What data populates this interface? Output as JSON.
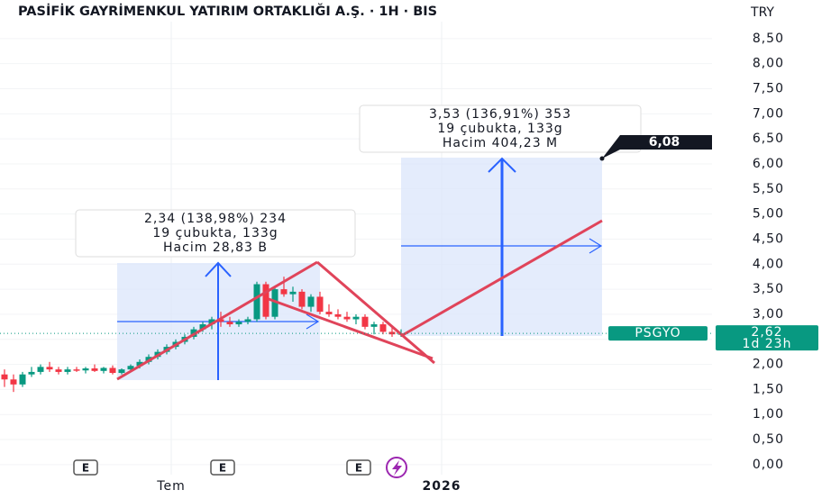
{
  "chart_data": {
    "type": "candlestick",
    "title": "PASİFİK GAYRİMENKUL YATIRIM ORTAKLIĞI A.Ş. · 1H · BIS",
    "currency": "TRY",
    "up_color": "#089981",
    "down_color": "#f23645",
    "ylim": [
      -0.2,
      9.27
    ],
    "yticks": [
      {
        "value": 0,
        "label": "0,00"
      },
      {
        "value": 0.5,
        "label": "0,50"
      },
      {
        "value": 1,
        "label": "1,00"
      },
      {
        "value": 1.5,
        "label": "1,50"
      },
      {
        "value": 2,
        "label": "2,00"
      },
      {
        "value": 2.5,
        "label": "2,50"
      },
      {
        "value": 3,
        "label": "3,00"
      },
      {
        "value": 3.5,
        "label": "3,50"
      },
      {
        "value": 4,
        "label": "4,00"
      },
      {
        "value": 4.5,
        "label": "4,50"
      },
      {
        "value": 5,
        "label": "5,00"
      },
      {
        "value": 5.5,
        "label": "5,50"
      },
      {
        "value": 6,
        "label": "6,00"
      },
      {
        "value": 6.5,
        "label": "6,50"
      },
      {
        "value": 7,
        "label": "7,00"
      },
      {
        "value": 7.5,
        "label": "7,50"
      },
      {
        "value": 8,
        "label": "8,00"
      },
      {
        "value": 8.5,
        "label": "8,50"
      }
    ],
    "xlim": [
      -0.5,
      78.5
    ],
    "xticks": [
      {
        "value": 18.5,
        "label": "Tem"
      },
      {
        "value": 48.5,
        "label": "2026"
      }
    ],
    "candles": {
      "open": [
        1.8,
        1.7,
        1.6,
        1.8,
        1.85,
        1.95,
        1.9,
        1.85,
        1.9,
        1.88,
        1.92,
        1.87,
        1.93,
        1.83,
        1.9,
        1.97,
        2.05,
        2.15,
        2.25,
        2.35,
        2.45,
        2.55,
        2.7,
        2.8,
        2.9,
        2.85,
        2.8,
        2.85,
        2.9,
        3.6,
        2.95,
        3.5,
        3.4,
        3.45,
        3.15,
        3.35,
        3.05,
        3.0,
        2.95,
        2.9,
        2.95,
        2.75,
        2.8,
        2.65,
        2.6
      ],
      "high": [
        1.9,
        1.8,
        1.85,
        1.95,
        2.0,
        2.05,
        1.95,
        1.95,
        1.95,
        1.95,
        2.0,
        1.95,
        1.98,
        1.92,
        2.0,
        2.1,
        2.2,
        2.3,
        2.4,
        2.5,
        2.6,
        2.75,
        2.85,
        2.95,
        3.05,
        2.95,
        2.9,
        2.95,
        3.65,
        3.65,
        3.55,
        3.75,
        3.55,
        3.5,
        3.4,
        3.45,
        3.2,
        3.1,
        3.05,
        3.0,
        3.0,
        2.85,
        2.85,
        2.75,
        2.7
      ],
      "low": [
        1.55,
        1.45,
        1.55,
        1.75,
        1.8,
        1.85,
        1.8,
        1.8,
        1.85,
        1.82,
        1.85,
        1.82,
        1.8,
        1.8,
        1.85,
        1.92,
        2.0,
        2.1,
        2.2,
        2.3,
        2.4,
        2.5,
        2.65,
        2.7,
        2.75,
        2.75,
        2.75,
        2.8,
        2.85,
        2.9,
        2.9,
        3.35,
        3.25,
        3.1,
        3.05,
        3.0,
        2.95,
        2.9,
        2.85,
        2.8,
        2.7,
        2.6,
        2.6,
        2.55,
        2.55
      ],
      "close": [
        1.7,
        1.6,
        1.8,
        1.85,
        1.95,
        1.9,
        1.85,
        1.9,
        1.88,
        1.92,
        1.87,
        1.93,
        1.83,
        1.9,
        1.97,
        2.05,
        2.15,
        2.25,
        2.35,
        2.45,
        2.55,
        2.7,
        2.8,
        2.9,
        2.85,
        2.8,
        2.85,
        2.9,
        3.6,
        2.95,
        3.5,
        3.4,
        3.45,
        3.15,
        3.35,
        3.05,
        3.0,
        2.95,
        2.9,
        2.95,
        2.75,
        2.8,
        2.65,
        2.6,
        2.62
      ]
    },
    "last_price": {
      "value": 2.62,
      "label": "2,62"
    },
    "symbol": "PSGYO",
    "countdown": "1d 23h",
    "target_label": "6,08",
    "measures": [
      [
        "2,34 (138,98%) 234",
        "19 çubukta, 133g",
        "Hacim 28,83 B"
      ],
      [
        "3,53 (136,91%) 353",
        "19 çubukta, 133g",
        "Hacim 404,23 M"
      ]
    ],
    "events": [
      "E",
      "E",
      "E"
    ]
  }
}
